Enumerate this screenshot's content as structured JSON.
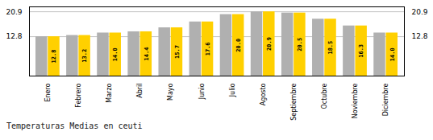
{
  "chart_data": {
    "type": "bar",
    "title": "Temperaturas Medias en ceuti",
    "categories": [
      "Enero",
      "Febrero",
      "Marzo",
      "Abril",
      "Mayo",
      "Junio",
      "Julio",
      "Agosto",
      "Septiembre",
      "Octubre",
      "Noviembre",
      "Diciembre"
    ],
    "series": [
      {
        "color": "#B0B0B0",
        "values": [
          12.8,
          13.2,
          14.0,
          14.4,
          15.7,
          17.6,
          20.0,
          20.9,
          20.5,
          18.5,
          16.3,
          14.0
        ]
      },
      {
        "color": "#FFD000",
        "values": [
          12.8,
          13.2,
          14.0,
          14.4,
          15.7,
          17.6,
          20.0,
          20.9,
          20.5,
          18.5,
          16.3,
          14.0
        ],
        "data_labels": true,
        "value_labels": [
          "12.8",
          "13.2",
          "14.0",
          "14.4",
          "15.7",
          "17.6",
          "20.0",
          "20.9",
          "20.5",
          "18.5",
          "16.3",
          "14.0"
        ]
      }
    ],
    "ylim": [
      0,
      22.5
    ],
    "yticks": [
      12.8,
      20.9
    ],
    "y2lim": [
      0,
      22.5
    ],
    "y2ticks": [
      12.8,
      20.9
    ],
    "grid": true
  }
}
